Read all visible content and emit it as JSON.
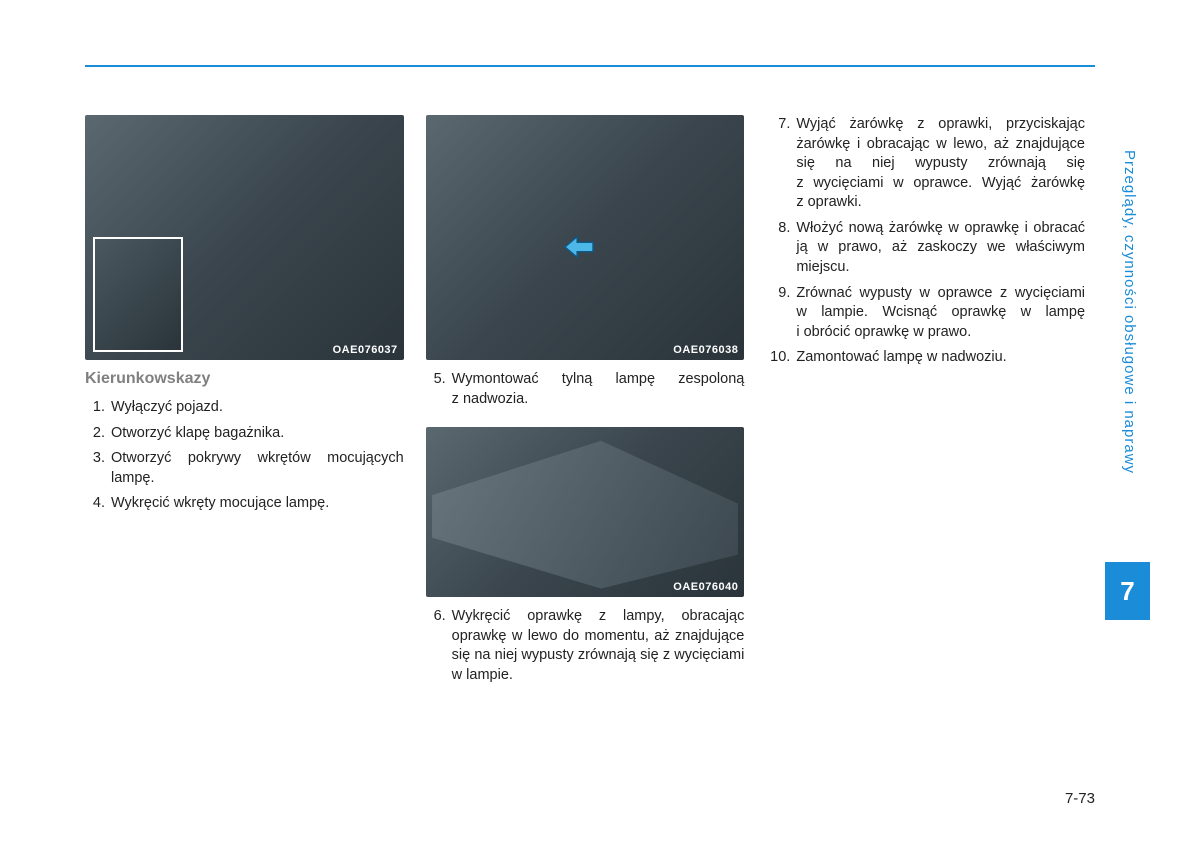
{
  "accent_color": "#1a8cd8",
  "chapter_number": "7",
  "page_number": "7-73",
  "sidebar_title": "Przeglądy, czynności obsługowe i naprawy",
  "figures": {
    "fig1_id": "OAE076037",
    "fig2_id": "OAE076038",
    "fig3_id": "OAE076040"
  },
  "section_title": "Kierunkowskazy",
  "col1_steps": [
    {
      "n": "1.",
      "t": "Wyłączyć pojazd."
    },
    {
      "n": "2.",
      "t": "Otworzyć klapę bagażnika."
    },
    {
      "n": "3.",
      "t": "Otworzyć pokrywy wkrętów mocujących lampę."
    },
    {
      "n": "4.",
      "t": "Wykręcić wkręty mocujące lampę."
    }
  ],
  "col2_steps_a": [
    {
      "n": "5.",
      "t": "Wymontować tylną lampę zespoloną z nadwozia."
    }
  ],
  "col2_steps_b": [
    {
      "n": "6.",
      "t": "Wykręcić oprawkę z lampy, obracając oprawkę w lewo do momentu, aż znajdujące się na niej wypusty zrównają się z wycięciami w lampie."
    }
  ],
  "col3_steps": [
    {
      "n": "7.",
      "t": "Wyjąć żarówkę z oprawki, przyciskając żarówkę i obracając w lewo, aż znajdujące się na niej wypusty zrównają się z wycięciami w oprawce. Wyjąć żarówkę z oprawki."
    },
    {
      "n": "8.",
      "t": "Włożyć nową żarówkę w oprawkę i obracać ją w prawo, aż zaskoczy we właściwym miejscu."
    },
    {
      "n": "9.",
      "t": "Zrównać wypusty w oprawce z wycięciami w lampie. Wcisnąć oprawkę w lampę i obrócić oprawkę w prawo."
    },
    {
      "n": "10.",
      "t": "Zamontować lampę w nadwoziu."
    }
  ]
}
